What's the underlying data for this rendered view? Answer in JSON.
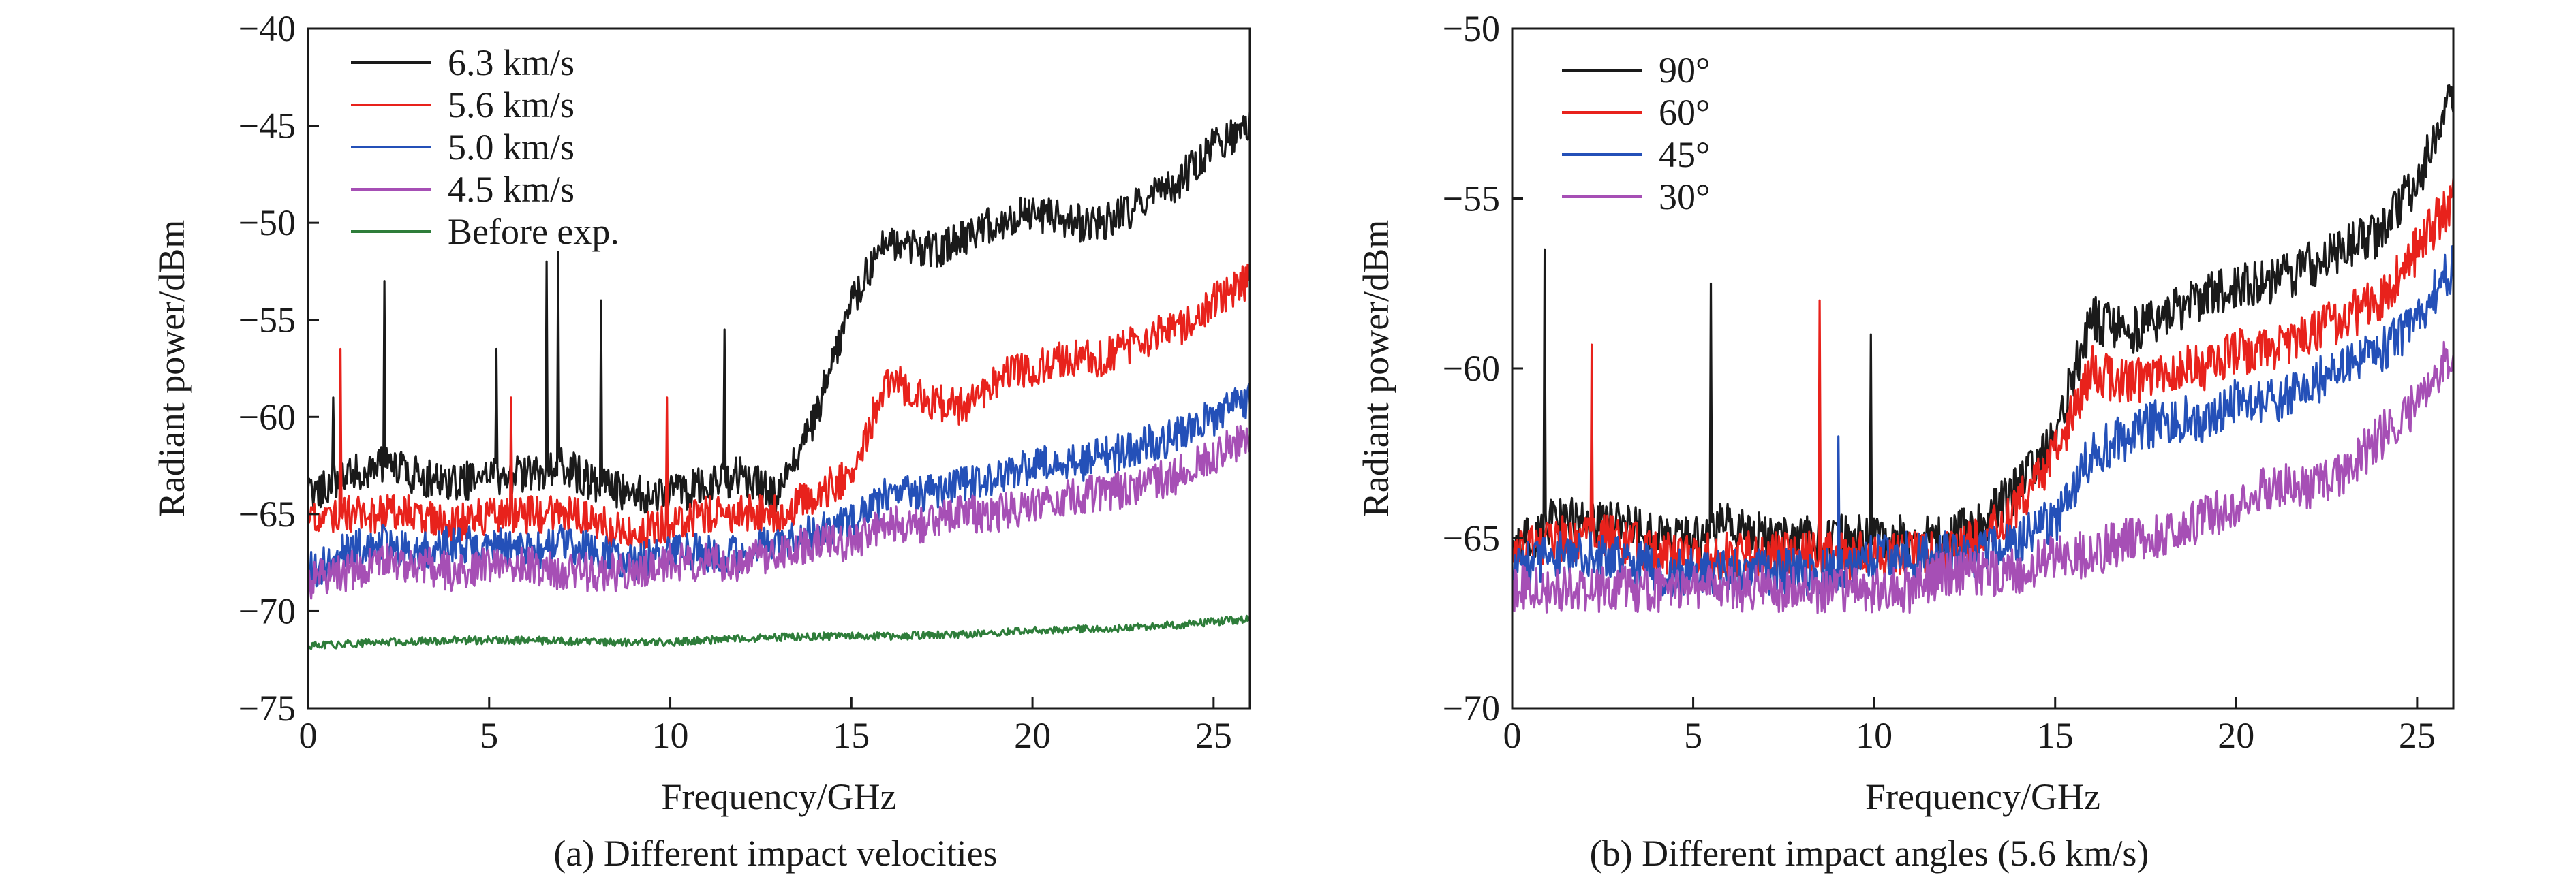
{
  "chart_data": [
    {
      "type": "line",
      "panel": "(a)",
      "caption": "(a) Different impact velocities",
      "xlabel": "Frequency/GHz",
      "ylabel": "Radiant power/dBm",
      "xlim": [
        0,
        26
      ],
      "ylim": [
        -75,
        -40
      ],
      "xticks": [
        0,
        5,
        10,
        15,
        20,
        25
      ],
      "yticks": [
        -75,
        -70,
        -65,
        -60,
        -55,
        -50,
        -45,
        -40
      ],
      "legend_position": "top-left",
      "grid": false,
      "noise_amplitude_db": 1.0,
      "series": [
        {
          "name": "6.3 km/s",
          "color": "#1a1a1a",
          "x": [
            0,
            1,
            2,
            3,
            4,
            5,
            6,
            7,
            8,
            9,
            10,
            11,
            12,
            13,
            14,
            15,
            16,
            17,
            18,
            19,
            20,
            21,
            22,
            23,
            24,
            25,
            26
          ],
          "y": [
            -64,
            -63,
            -62.5,
            -63,
            -63.5,
            -63,
            -63,
            -62.5,
            -63.5,
            -64,
            -64,
            -63.5,
            -63,
            -64,
            -60,
            -54,
            -51,
            -51.5,
            -51,
            -50,
            -49.5,
            -50,
            -50,
            -49,
            -48,
            -46,
            -45
          ],
          "spikes": [
            [
              0.7,
              -59
            ],
            [
              2.1,
              -53
            ],
            [
              5.2,
              -56.5
            ],
            [
              6.6,
              -52
            ],
            [
              6.9,
              -51.5
            ],
            [
              8.1,
              -54
            ],
            [
              11.5,
              -55.5
            ]
          ]
        },
        {
          "name": "5.6 km/s",
          "color": "#e8221c",
          "x": [
            0,
            1,
            2,
            3,
            4,
            5,
            6,
            7,
            8,
            9,
            10,
            11,
            12,
            13,
            14,
            15,
            16,
            17,
            18,
            19,
            20,
            21,
            22,
            23,
            24,
            25,
            26
          ],
          "y": [
            -65.5,
            -65,
            -65,
            -65,
            -65.5,
            -65,
            -65,
            -65,
            -65.5,
            -66,
            -65.5,
            -65,
            -65,
            -65,
            -64,
            -63,
            -58,
            -59,
            -59.5,
            -58,
            -57.5,
            -57,
            -57,
            -56,
            -55.5,
            -54,
            -53
          ],
          "spikes": [
            [
              0.9,
              -56.5
            ],
            [
              5.6,
              -59
            ],
            [
              9.9,
              -59
            ]
          ]
        },
        {
          "name": "5.0 km/s",
          "color": "#2450b8",
          "x": [
            0,
            1,
            2,
            3,
            4,
            5,
            6,
            7,
            8,
            9,
            10,
            11,
            12,
            13,
            14,
            15,
            16,
            17,
            18,
            19,
            20,
            21,
            22,
            23,
            24,
            25,
            26
          ],
          "y": [
            -68,
            -67,
            -66.5,
            -67,
            -66.5,
            -66.5,
            -67,
            -66.5,
            -67,
            -67.5,
            -67,
            -67,
            -67,
            -66.5,
            -66,
            -65.5,
            -64,
            -64,
            -63.5,
            -63,
            -62.5,
            -62.5,
            -62,
            -61.5,
            -61,
            -60,
            -59
          ],
          "spikes": []
        },
        {
          "name": "4.5 km/s",
          "color": "#a64fb5",
          "x": [
            0,
            1,
            2,
            3,
            4,
            5,
            6,
            7,
            8,
            9,
            10,
            11,
            12,
            13,
            14,
            15,
            16,
            17,
            18,
            19,
            20,
            21,
            22,
            23,
            24,
            25,
            26
          ],
          "y": [
            -68.5,
            -68,
            -67.5,
            -67.5,
            -68,
            -67.5,
            -67.5,
            -68,
            -68,
            -68,
            -67.5,
            -67.5,
            -67.5,
            -67,
            -66.5,
            -66.5,
            -65.5,
            -65.5,
            -65,
            -65,
            -64.5,
            -64,
            -64,
            -63.5,
            -63,
            -62,
            -61
          ],
          "spikes": []
        },
        {
          "name": "Before exp.",
          "color": "#2e7d3a",
          "x": [
            0,
            2,
            4,
            6,
            8,
            10,
            12,
            14,
            16,
            18,
            20,
            22,
            24,
            26
          ],
          "y": [
            -71.8,
            -71.6,
            -71.5,
            -71.5,
            -71.6,
            -71.6,
            -71.4,
            -71.3,
            -71.3,
            -71.2,
            -71.0,
            -70.9,
            -70.7,
            -70.4
          ],
          "spikes": [],
          "noise_amplitude_db": 0.2
        }
      ]
    },
    {
      "type": "line",
      "panel": "(b)",
      "caption": "(b) Different impact angles (5.6 km/s)",
      "xlabel": "Frequency/GHz",
      "ylabel": "Radiant power/dBm",
      "xlim": [
        0,
        26
      ],
      "ylim": [
        -70,
        -50
      ],
      "xticks": [
        0,
        5,
        10,
        15,
        20,
        25
      ],
      "yticks": [
        -70,
        -65,
        -60,
        -55,
        -50
      ],
      "legend_position": "top-left",
      "grid": false,
      "noise_amplitude_db": 0.7,
      "series": [
        {
          "name": "90°",
          "color": "#1a1a1a",
          "x": [
            0,
            1,
            2,
            3,
            4,
            5,
            6,
            7,
            8,
            9,
            10,
            11,
            12,
            13,
            14,
            15,
            16,
            17,
            18,
            19,
            20,
            21,
            22,
            23,
            24,
            25,
            26
          ],
          "y": [
            -65.5,
            -64.5,
            -64.5,
            -64.5,
            -65,
            -65,
            -64.5,
            -65,
            -65,
            -65,
            -65,
            -65,
            -65,
            -64.5,
            -63.5,
            -62,
            -58.5,
            -59,
            -58.5,
            -58,
            -57.5,
            -57.5,
            -57,
            -56.5,
            -56,
            -54.5,
            -52
          ],
          "spikes": [
            [
              0.9,
              -56.5
            ],
            [
              5.5,
              -57.5
            ],
            [
              9.9,
              -59
            ]
          ]
        },
        {
          "name": "60°",
          "color": "#e8221c",
          "x": [
            0,
            1,
            2,
            3,
            4,
            5,
            6,
            7,
            8,
            9,
            10,
            11,
            12,
            13,
            14,
            15,
            16,
            17,
            18,
            19,
            20,
            21,
            22,
            23,
            24,
            25,
            26
          ],
          "y": [
            -65.5,
            -65,
            -65,
            -65,
            -65.5,
            -65.5,
            -65.5,
            -65.5,
            -65.5,
            -65.5,
            -65.5,
            -65.5,
            -65.5,
            -65,
            -64,
            -62.5,
            -60,
            -60.5,
            -60,
            -60,
            -59.5,
            -59.5,
            -59,
            -58.5,
            -58,
            -56.5,
            -55
          ],
          "spikes": [
            [
              2.2,
              -59.3
            ],
            [
              8.5,
              -58
            ]
          ]
        },
        {
          "name": "45°",
          "color": "#2450b8",
          "x": [
            0,
            1,
            2,
            3,
            4,
            5,
            6,
            7,
            8,
            9,
            10,
            11,
            12,
            13,
            14,
            15,
            16,
            17,
            18,
            19,
            20,
            21,
            22,
            23,
            24,
            25,
            26
          ],
          "y": [
            -66,
            -65.5,
            -65.5,
            -65.5,
            -66,
            -66,
            -66,
            -66,
            -66,
            -66,
            -65.5,
            -65.5,
            -65.5,
            -65.5,
            -65,
            -64.5,
            -62.5,
            -62,
            -61.5,
            -61.5,
            -61,
            -61,
            -60.5,
            -60,
            -59.5,
            -58.5,
            -57
          ],
          "spikes": [
            [
              9.0,
              -62
            ]
          ]
        },
        {
          "name": "30°",
          "color": "#a64fb5",
          "x": [
            0,
            1,
            2,
            3,
            4,
            5,
            6,
            7,
            8,
            9,
            10,
            11,
            12,
            13,
            14,
            15,
            16,
            17,
            18,
            19,
            20,
            21,
            22,
            23,
            24,
            25,
            26
          ],
          "y": [
            -66.5,
            -66.5,
            -66.5,
            -66.5,
            -66.5,
            -66.5,
            -66.5,
            -66.5,
            -66.5,
            -66.5,
            -66.5,
            -66.5,
            -66,
            -66,
            -66,
            -65.5,
            -65.5,
            -65,
            -65,
            -64.5,
            -64,
            -63.5,
            -63.5,
            -63,
            -62,
            -61,
            -59.5
          ],
          "spikes": []
        }
      ]
    }
  ]
}
